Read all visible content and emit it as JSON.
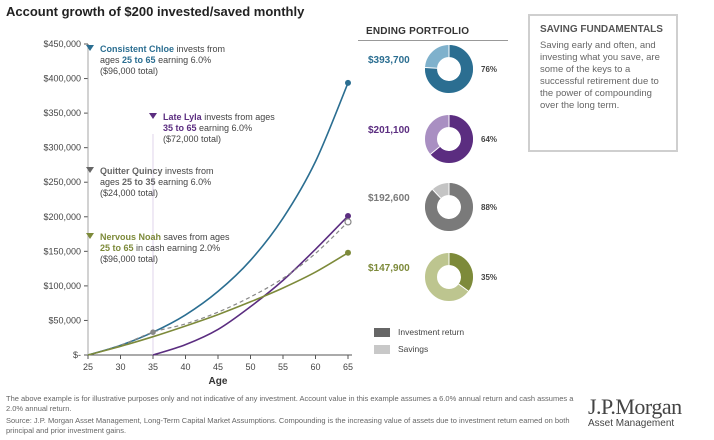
{
  "title": "Account growth of $200 invested/saved monthly",
  "chart_data": {
    "type": "line",
    "xlabel": "Age",
    "ylabel": "",
    "x": [
      25,
      30,
      35,
      40,
      45,
      50,
      55,
      60,
      65
    ],
    "xlim": [
      25,
      65
    ],
    "ylim": [
      0,
      450000
    ],
    "x_ticks": [
      "25",
      "30",
      "35",
      "40",
      "45",
      "50",
      "55",
      "60",
      "65"
    ],
    "y_ticks": [
      "$-",
      "$50,000",
      "$100,000",
      "$150,000",
      "$200,000",
      "$250,000",
      "$300,000",
      "$350,000",
      "$400,000",
      "$450,000"
    ],
    "grid": false,
    "series": [
      {
        "key": "chloe",
        "color": "#2b6e91",
        "dashed": false,
        "x": [
          25,
          30,
          35,
          40,
          45,
          50,
          55,
          60,
          65
        ],
        "values": [
          0,
          14000,
          33000,
          58000,
          92000,
          137000,
          198000,
          280000,
          393700
        ]
      },
      {
        "key": "lyla",
        "color": "#5b2d80",
        "dashed": false,
        "x": [
          35,
          40,
          45,
          50,
          55,
          60,
          65
        ],
        "values": [
          0,
          15000,
          37000,
          70000,
          108000,
          153000,
          201100
        ]
      },
      {
        "key": "quincy",
        "color": "#888888",
        "dashed": true,
        "x": [
          25,
          30,
          35,
          40,
          45,
          50,
          55,
          60,
          65
        ],
        "values": [
          0,
          14000,
          33000,
          45000,
          62000,
          84000,
          111000,
          147000,
          192600
        ]
      },
      {
        "key": "noah",
        "color": "#7d8a3a",
        "dashed": false,
        "x": [
          25,
          30,
          35,
          40,
          45,
          50,
          55,
          60,
          65
        ],
        "values": [
          0,
          12500,
          26500,
          42000,
          58500,
          77000,
          97000,
          120000,
          147900
        ]
      }
    ],
    "annotations": [
      {
        "key": "chloe",
        "name": "Consistent Chloe",
        "line1": " invests from",
        "line2_pre": "ages ",
        "line2_em": "25 to 65",
        "line2_post": " earning 6.0%",
        "line3": "($96,000 total)",
        "color": "#2b6e91"
      },
      {
        "key": "lyla",
        "name": "Late Lyla",
        "line1": " invests from ages",
        "line2_pre": "",
        "line2_em": "35 to 65",
        "line2_post": " earning 6.0%",
        "line3": "($72,000 total)",
        "color": "#5b2d80"
      },
      {
        "key": "quincy",
        "name": "Quitter Quincy",
        "line1": " invests from",
        "line2_pre": "ages ",
        "line2_em": "25 to 35",
        "line2_post": " earning 6.0%",
        "line3": "($24,000 total)",
        "color": "#666666"
      },
      {
        "key": "noah",
        "name": "Nervous Noah",
        "line1": " saves from ages",
        "line2_pre": "",
        "line2_em": "25 to 65",
        "line2_post": " in cash earning 2.0%",
        "line3": "($96,000 total)",
        "color": "#7d8a3a"
      }
    ]
  },
  "portfolio": {
    "heading": "ENDING PORTFOLIO",
    "items": [
      {
        "value": "$393,700",
        "color": "#2b6e91",
        "light": "#7fb1cc",
        "pct": 76,
        "pct_label": "76%"
      },
      {
        "value": "$201,100",
        "color": "#5b2d80",
        "light": "#a98fc2",
        "pct": 64,
        "pct_label": "64%"
      },
      {
        "value": "$192,600",
        "color": "#7a7a7a",
        "light": "#c4c4c4",
        "pct": 88,
        "pct_label": "88%"
      },
      {
        "value": "$147,900",
        "color": "#7d8a3a",
        "light": "#bdc58f",
        "pct": 35,
        "pct_label": "35%"
      }
    ],
    "legend": [
      {
        "label": "Investment return",
        "color": "#666666"
      },
      {
        "label": "Savings",
        "color": "#c8c8c8"
      }
    ]
  },
  "fundamentals": {
    "title": "SAVING FUNDAMENTALS",
    "text": "Saving early and often, and investing what you save, are some of the keys to a successful retirement due to the power of compounding over the long term."
  },
  "footnotes": {
    "line1": "The above example is for illustrative purposes only and not indicative of any investment. Account value in this example assumes a 6.0% annual return and cash assumes a 2.0% annual return.",
    "line2": "Source: J.P. Morgan Asset Management, Long-Term Capital Market Assumptions. Compounding is the increasing value of assets due to investment return earned on both principal and prior investment gains."
  },
  "logo": {
    "main": "J.P.Morgan",
    "sub": "Asset Management"
  }
}
